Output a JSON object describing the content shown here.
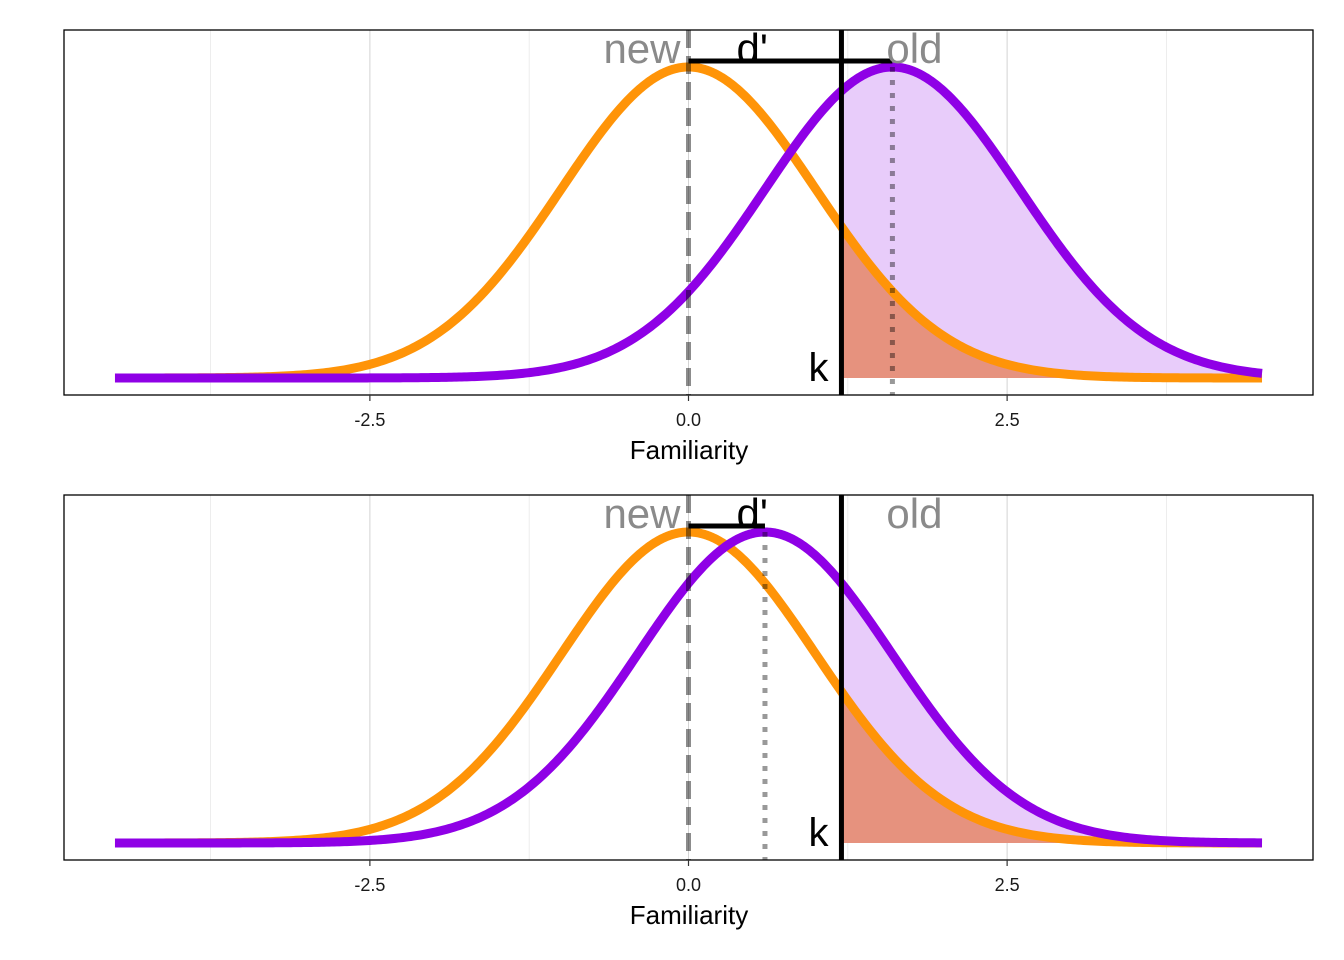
{
  "chart_data": [
    {
      "type": "line",
      "xlabel": "Familiarity",
      "xlim": [
        -4.9,
        4.9
      ],
      "x_ticks": [
        "-2.5",
        "0.0",
        "2.5"
      ],
      "x_tick_values": [
        -2.5,
        0.0,
        2.5
      ],
      "grid": true,
      "series": [
        {
          "name": "new",
          "mean": 0.0,
          "sd": 1,
          "color": "#FF9408",
          "x_range": [
            -4.5,
            4.5
          ]
        },
        {
          "name": "old",
          "mean": 1.6,
          "sd": 1,
          "color": "#8F00E6",
          "x_range": [
            -4.5,
            4.5
          ]
        }
      ],
      "criterion": {
        "label": "k",
        "x": 1.2
      },
      "dprime": {
        "label": "d'",
        "from": 0.0,
        "to": 1.6
      },
      "labels": {
        "new": "new",
        "old": "old"
      },
      "fill_colors": {
        "hits": "#E8CCFA",
        "false_alarms": "#E6927E"
      }
    },
    {
      "type": "line",
      "xlabel": "Familiarity",
      "xlim": [
        -4.9,
        4.9
      ],
      "x_ticks": [
        "-2.5",
        "0.0",
        "2.5"
      ],
      "x_tick_values": [
        -2.5,
        0.0,
        2.5
      ],
      "grid": true,
      "series": [
        {
          "name": "new",
          "mean": 0.0,
          "sd": 1,
          "color": "#FF9408",
          "x_range": [
            -4.5,
            4.5
          ]
        },
        {
          "name": "old",
          "mean": 0.6,
          "sd": 1,
          "color": "#8F00E6",
          "x_range": [
            -4.5,
            4.5
          ]
        }
      ],
      "criterion": {
        "label": "k",
        "x": 1.2
      },
      "dprime": {
        "label": "d'",
        "from": 0.0,
        "to": 0.6
      },
      "labels": {
        "new": "new",
        "old": "old"
      },
      "fill_colors": {
        "hits": "#E8CCFA",
        "false_alarms": "#E6927E"
      }
    }
  ]
}
